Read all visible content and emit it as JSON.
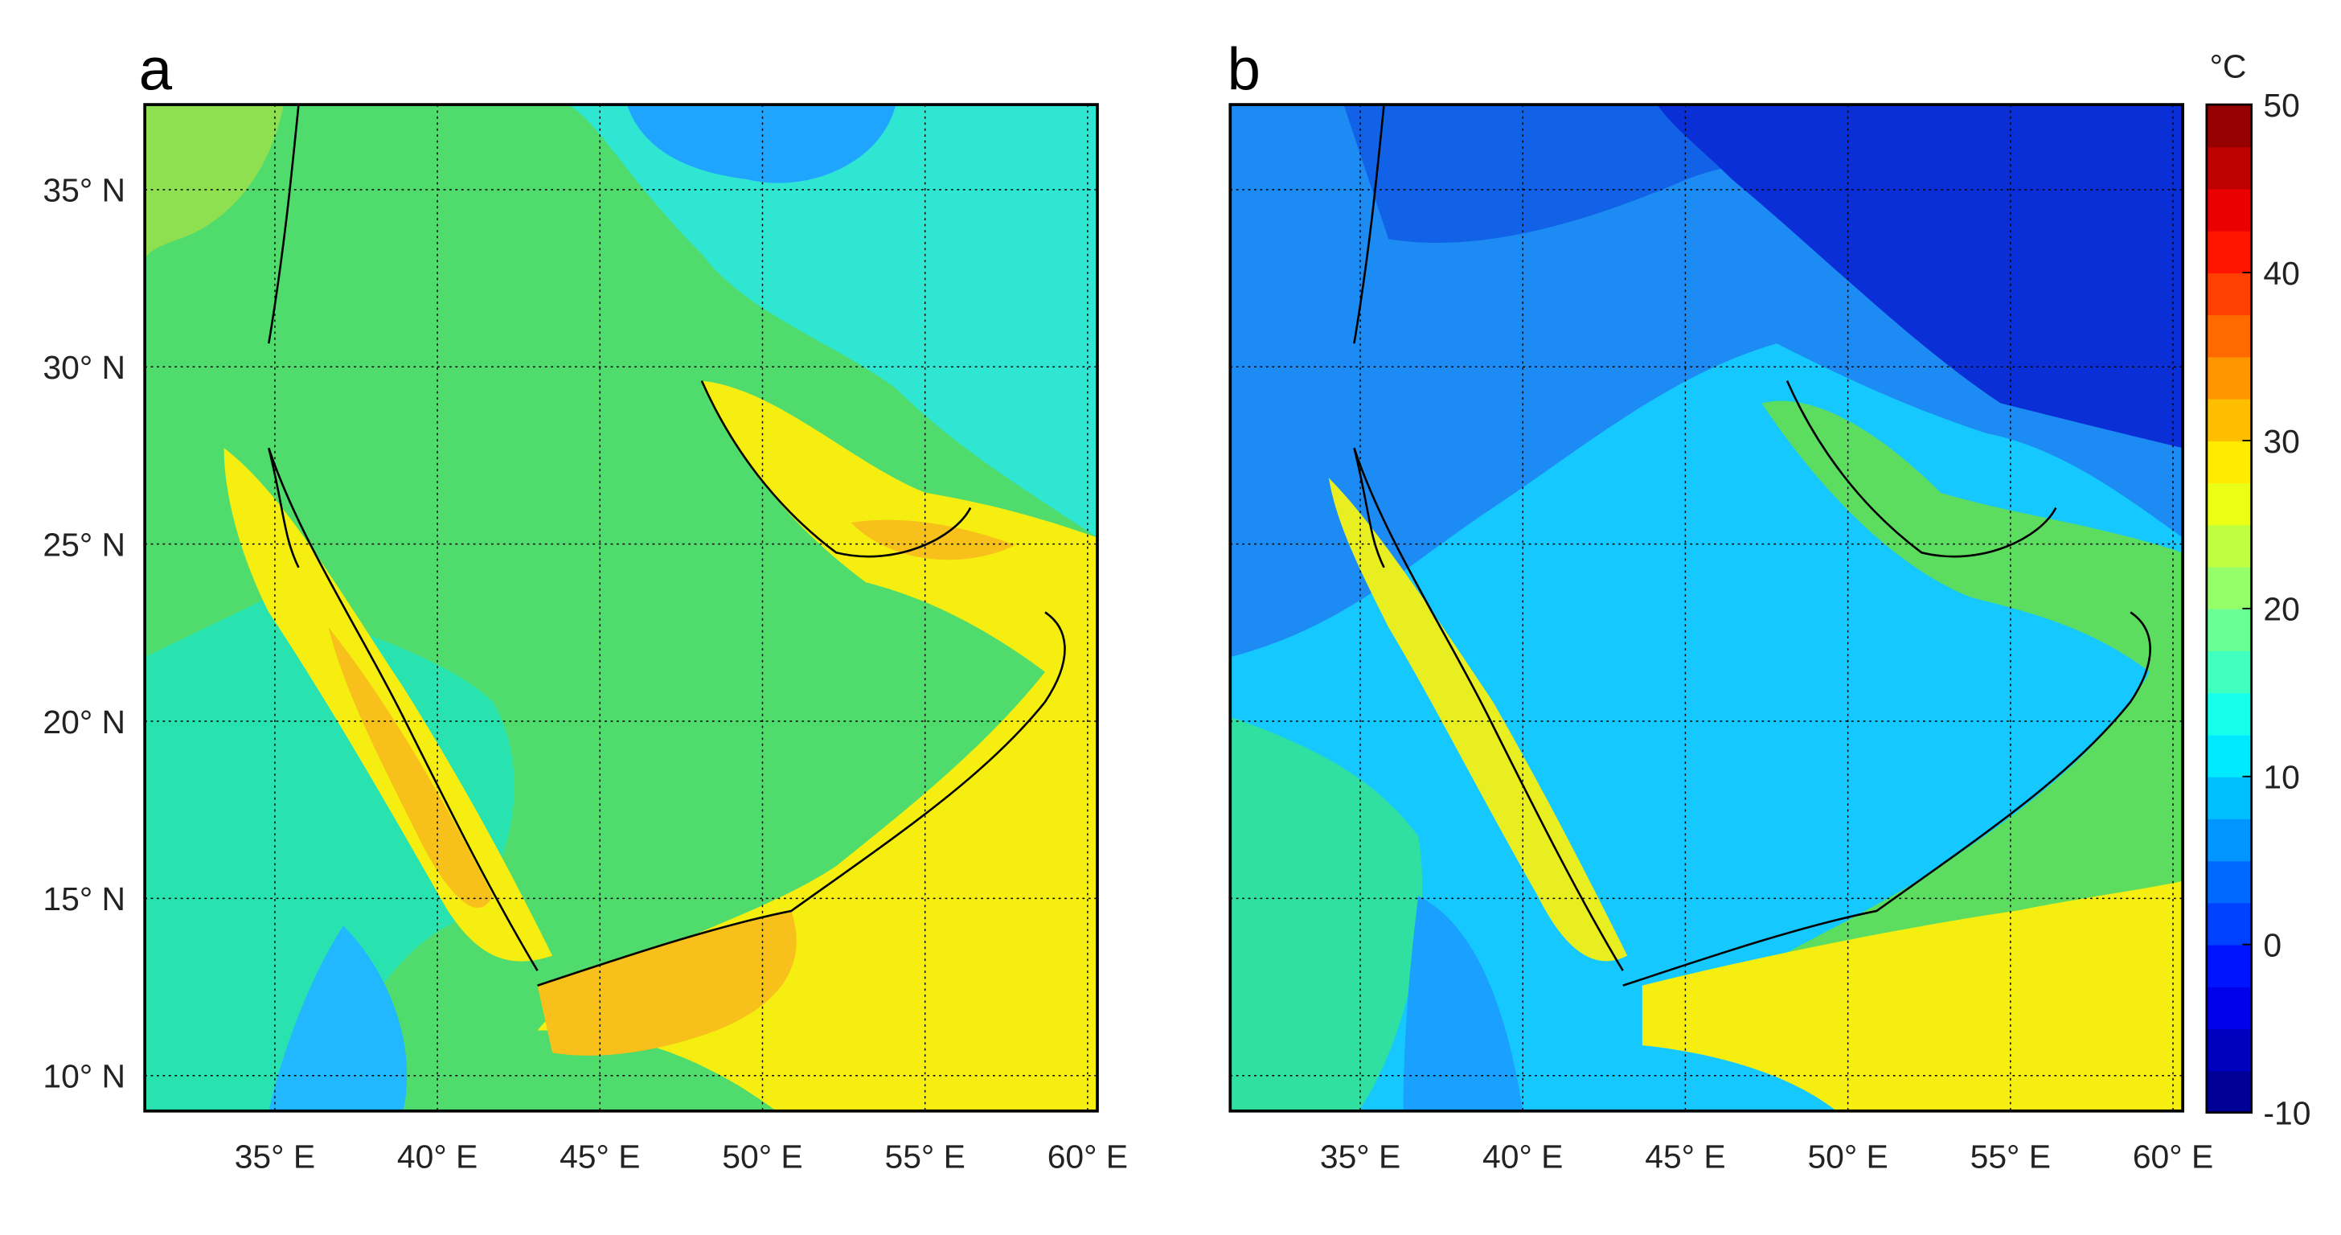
{
  "maps": {
    "panels": [
      {
        "label": "a"
      },
      {
        "label": "b"
      }
    ],
    "lon_ticks": [
      {
        "value": 35,
        "label": "35° E"
      },
      {
        "value": 40,
        "label": "40° E"
      },
      {
        "value": 45,
        "label": "45° E"
      },
      {
        "value": 50,
        "label": "50° E"
      },
      {
        "value": 55,
        "label": "55° E"
      },
      {
        "value": 60,
        "label": "60° E"
      }
    ],
    "lat_ticks": [
      {
        "value": 35,
        "label": "35° N"
      },
      {
        "value": 30,
        "label": "30° N"
      },
      {
        "value": 25,
        "label": "25° N"
      },
      {
        "value": 20,
        "label": "20° N"
      },
      {
        "value": 15,
        "label": "15° N"
      },
      {
        "value": 10,
        "label": "10° N"
      }
    ],
    "colorbar": {
      "unit": "°C",
      "range": [
        -10,
        50
      ],
      "ticks": [
        -10,
        0,
        10,
        20,
        30,
        40,
        50
      ]
    }
  }
}
